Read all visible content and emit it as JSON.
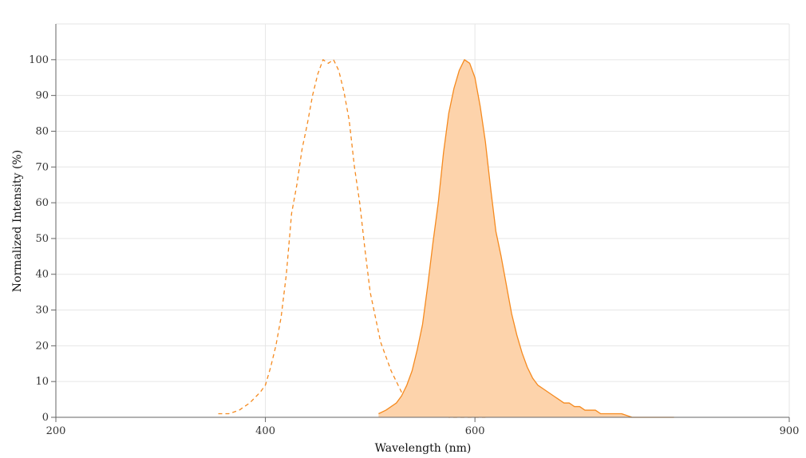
{
  "chart_data": {
    "type": "area",
    "xlabel": "Wavelength (nm)",
    "ylabel": "Normalized Intensity (%)",
    "xlim": [
      200,
      900
    ],
    "ylim": [
      0,
      110
    ],
    "x_ticks": [
      200,
      400,
      600,
      900
    ],
    "y_ticks": [
      0,
      10,
      20,
      30,
      40,
      50,
      60,
      70,
      80,
      90,
      100
    ],
    "grid": true,
    "series": [
      {
        "style": "dashed-line",
        "color": "#f58a1f",
        "x": [
          355,
          365,
          375,
          385,
          395,
          400,
          405,
          410,
          415,
          420,
          425,
          430,
          435,
          440,
          445,
          450,
          455,
          460,
          465,
          470,
          475,
          480,
          485,
          490,
          495,
          500,
          505,
          510,
          515,
          520,
          525,
          530,
          535,
          540,
          545,
          550,
          555,
          560,
          565,
          570,
          575,
          580,
          590,
          600,
          610
        ],
        "y": [
          1,
          1,
          2,
          4,
          7,
          9,
          14,
          20,
          28,
          40,
          57,
          65,
          75,
          82,
          90,
          96,
          100,
          99,
          100,
          97,
          91,
          83,
          70,
          60,
          47,
          35,
          28,
          21,
          17,
          13,
          10,
          7,
          5,
          4,
          3,
          2,
          2,
          1,
          1,
          1,
          0,
          0,
          0,
          0,
          0
        ]
      },
      {
        "style": "filled-area",
        "color": "#f58a1f",
        "fill": "#fdd3ab",
        "x": [
          508,
          515,
          520,
          525,
          530,
          535,
          540,
          545,
          550,
          555,
          560,
          565,
          570,
          575,
          580,
          585,
          590,
          595,
          600,
          605,
          610,
          615,
          620,
          625,
          630,
          635,
          640,
          645,
          650,
          655,
          660,
          665,
          670,
          675,
          680,
          685,
          690,
          695,
          700,
          705,
          710,
          715,
          720,
          730,
          740,
          750,
          760,
          770,
          780,
          790
        ],
        "y": [
          1,
          2,
          3,
          4,
          6,
          9,
          13,
          19,
          26,
          37,
          49,
          60,
          74,
          85,
          92,
          97,
          100,
          99,
          95,
          87,
          77,
          64,
          52,
          45,
          37,
          29,
          23,
          18,
          14,
          11,
          9,
          8,
          7,
          6,
          5,
          4,
          4,
          3,
          3,
          2,
          2,
          2,
          1,
          1,
          1,
          0,
          0,
          0,
          0,
          0
        ]
      }
    ]
  }
}
